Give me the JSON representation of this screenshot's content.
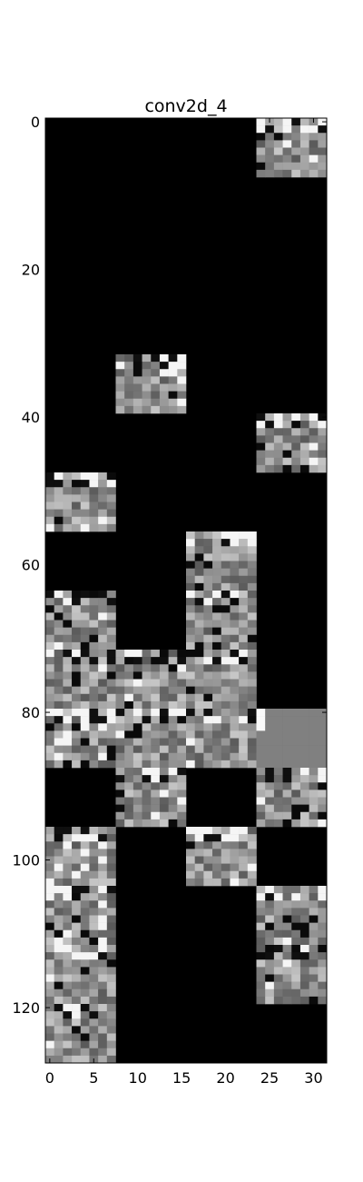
{
  "chart_data": {
    "type": "heatmap",
    "title": "conv2d_4",
    "colormap": "grayscale",
    "grid": false,
    "xlim": [
      -0.5,
      31.5
    ],
    "ylim": [
      127.5,
      -0.5
    ],
    "xticks": [
      {
        "value": 0,
        "label": "0"
      },
      {
        "value": 5,
        "label": "5"
      },
      {
        "value": 10,
        "label": "10"
      },
      {
        "value": 15,
        "label": "15"
      },
      {
        "value": 20,
        "label": "20"
      },
      {
        "value": 25,
        "label": "25"
      },
      {
        "value": 30,
        "label": "30"
      }
    ],
    "yticks": [
      {
        "value": 0,
        "label": "0"
      },
      {
        "value": 20,
        "label": "20"
      },
      {
        "value": 40,
        "label": "40"
      },
      {
        "value": 60,
        "label": "60"
      },
      {
        "value": 80,
        "label": "80"
      },
      {
        "value": 100,
        "label": "100"
      },
      {
        "value": 120,
        "label": "120"
      }
    ],
    "tile_rows": 16,
    "tile_cols": 4,
    "tile_size": 8,
    "active_tiles": [
      {
        "row": 0,
        "col": 3
      },
      {
        "row": 4,
        "col": 1
      },
      {
        "row": 5,
        "col": 3
      },
      {
        "row": 6,
        "col": 0
      },
      {
        "row": 7,
        "col": 2
      },
      {
        "row": 8,
        "col": 0
      },
      {
        "row": 8,
        "col": 2
      },
      {
        "row": 9,
        "col": 0
      },
      {
        "row": 9,
        "col": 1
      },
      {
        "row": 9,
        "col": 2
      },
      {
        "row": 10,
        "col": 0
      },
      {
        "row": 10,
        "col": 1
      },
      {
        "row": 10,
        "col": 2
      },
      {
        "row": 10,
        "col": 3,
        "uniform": true
      },
      {
        "row": 11,
        "col": 1
      },
      {
        "row": 11,
        "col": 3
      },
      {
        "row": 12,
        "col": 0
      },
      {
        "row": 12,
        "col": 2
      },
      {
        "row": 13,
        "col": 0
      },
      {
        "row": 13,
        "col": 3
      },
      {
        "row": 14,
        "col": 0
      },
      {
        "row": 14,
        "col": 3
      },
      {
        "row": 15,
        "col": 0
      }
    ]
  }
}
